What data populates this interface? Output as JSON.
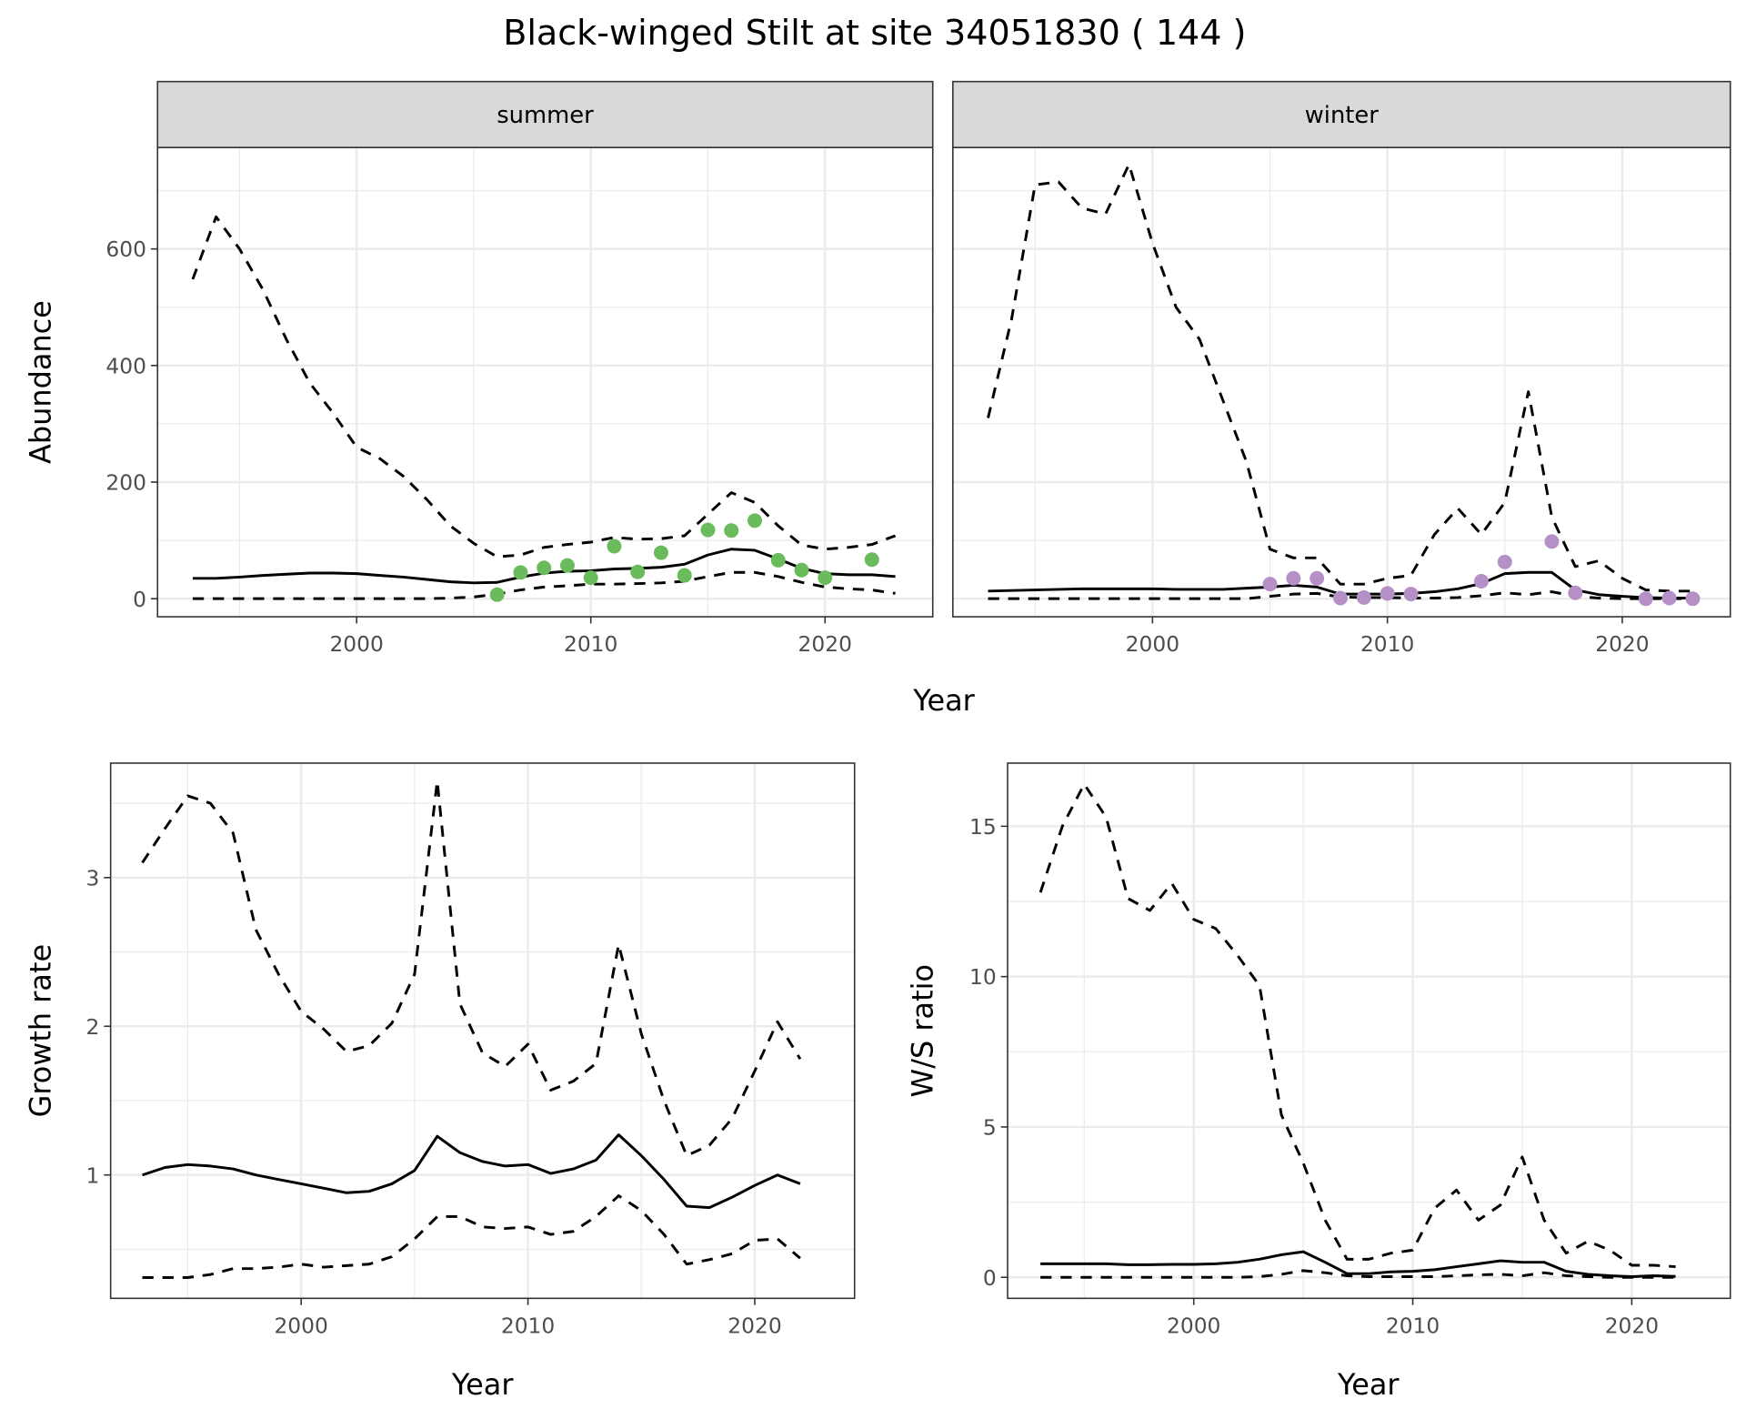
{
  "title": "Black-winged Stilt at site 34051830 ( 144 )",
  "colors": {
    "summer_points": "#6abb5c",
    "winter_points": "#b590c7",
    "line": "#000000",
    "strip_fill": "#d9d9d9",
    "grid": "#ebebeb"
  },
  "shared_x_label": "Year",
  "chart_data": [
    {
      "type": "line",
      "facet": "summer",
      "ylabel": "Abundance",
      "xlim": [
        1991.5,
        2024.6
      ],
      "ylim": [
        -31,
        774
      ],
      "xticks": [
        2000,
        2010,
        2020
      ],
      "yticks": [
        0,
        200,
        400,
        600
      ],
      "grid": true,
      "x": [
        1993,
        1994,
        1995,
        1996,
        1997,
        1998,
        1999,
        2000,
        2001,
        2002,
        2003,
        2004,
        2005,
        2006,
        2007,
        2008,
        2009,
        2010,
        2011,
        2012,
        2013,
        2014,
        2015,
        2016,
        2017,
        2018,
        2019,
        2020,
        2021,
        2022,
        2023
      ],
      "series": [
        {
          "style": "dashed",
          "values": [
            548,
            655,
            600,
            530,
            445,
            370,
            318,
            260,
            240,
            210,
            170,
            125,
            95,
            72,
            75,
            88,
            93,
            97,
            105,
            102,
            103,
            108,
            145,
            182,
            165,
            125,
            92,
            85,
            88,
            93,
            108
          ]
        },
        {
          "style": "solid",
          "values": [
            35,
            35,
            37,
            40,
            42,
            44,
            44,
            43,
            40,
            37,
            33,
            29,
            27,
            28,
            37,
            44,
            47,
            48,
            51,
            52,
            54,
            59,
            75,
            85,
            83,
            68,
            52,
            43,
            41,
            41,
            38
          ]
        },
        {
          "style": "dashed",
          "values": [
            0,
            0,
            0,
            0,
            0,
            0,
            0,
            0,
            0,
            0,
            0,
            1,
            3,
            8,
            15,
            20,
            22,
            25,
            25,
            26,
            27,
            30,
            38,
            45,
            45,
            38,
            28,
            20,
            17,
            15,
            9
          ]
        }
      ],
      "points": {
        "x": [
          2006,
          2007,
          2008,
          2009,
          2010,
          2011,
          2012,
          2013,
          2014,
          2015,
          2016,
          2017,
          2018,
          2019,
          2020,
          2022
        ],
        "y": [
          7,
          45,
          53,
          57,
          36,
          90,
          46,
          79,
          40,
          118,
          117,
          134,
          66,
          49,
          36,
          67
        ]
      }
    },
    {
      "type": "line",
      "facet": "winter",
      "ylabel": "",
      "xlim": [
        1991.5,
        2024.6
      ],
      "ylim": [
        -31,
        774
      ],
      "xticks": [
        2000,
        2010,
        2020
      ],
      "yticks": [
        0,
        200,
        400,
        600
      ],
      "grid": true,
      "x": [
        1993,
        1994,
        1995,
        1996,
        1997,
        1998,
        1999,
        2000,
        2001,
        2002,
        2003,
        2004,
        2005,
        2006,
        2007,
        2008,
        2009,
        2010,
        2011,
        2012,
        2013,
        2014,
        2015,
        2016,
        2017,
        2018,
        2019,
        2020,
        2021,
        2022,
        2023
      ],
      "series": [
        {
          "style": "dashed",
          "values": [
            310,
            480,
            710,
            715,
            670,
            660,
            745,
            610,
            500,
            445,
            340,
            235,
            85,
            70,
            70,
            25,
            25,
            35,
            40,
            110,
            155,
            110,
            165,
            355,
            140,
            55,
            65,
            35,
            15,
            13,
            13
          ]
        },
        {
          "style": "solid",
          "values": [
            13,
            14,
            15,
            16,
            17,
            17,
            17,
            17,
            16,
            16,
            16,
            18,
            20,
            23,
            20,
            8,
            8,
            8,
            9,
            12,
            17,
            26,
            43,
            45,
            45,
            15,
            7,
            4,
            2,
            1,
            1
          ]
        },
        {
          "style": "dashed",
          "values": [
            0,
            0,
            0,
            0,
            0,
            0,
            0,
            0,
            0,
            0,
            0,
            0,
            4,
            8,
            9,
            3,
            2,
            2,
            1,
            1,
            2,
            5,
            10,
            7,
            12,
            4,
            1,
            0,
            0,
            0,
            0
          ]
        }
      ],
      "points": {
        "x": [
          2005,
          2006,
          2007,
          2008,
          2009,
          2010,
          2011,
          2014,
          2015,
          2017,
          2018,
          2021,
          2022,
          2023
        ],
        "y": [
          25,
          35,
          35,
          1,
          2,
          9,
          8,
          30,
          63,
          98,
          10,
          0,
          1,
          0
        ]
      }
    },
    {
      "type": "line",
      "xlabel": "Year",
      "ylabel": "Growth rate",
      "xlim": [
        1991.6,
        2024.4
      ],
      "ylim": [
        0.17,
        3.77
      ],
      "xticks": [
        2000,
        2010,
        2020
      ],
      "yticks": [
        1,
        2,
        3
      ],
      "grid": true,
      "x": [
        1993,
        1994,
        1995,
        1996,
        1997,
        1998,
        1999,
        2000,
        2001,
        2002,
        2003,
        2004,
        2005,
        2006,
        2007,
        2008,
        2009,
        2010,
        2011,
        2012,
        2013,
        2014,
        2015,
        2016,
        2017,
        2018,
        2019,
        2020,
        2021,
        2022
      ],
      "series": [
        {
          "style": "dashed",
          "values": [
            3.1,
            3.33,
            3.55,
            3.5,
            3.3,
            2.65,
            2.35,
            2.1,
            1.98,
            1.83,
            1.87,
            2.02,
            2.35,
            3.65,
            2.15,
            1.82,
            1.73,
            1.88,
            1.57,
            1.63,
            1.75,
            2.55,
            1.95,
            1.5,
            1.13,
            1.2,
            1.38,
            1.7,
            2.03,
            1.78
          ]
        },
        {
          "style": "solid",
          "values": [
            1.0,
            1.05,
            1.07,
            1.06,
            1.04,
            1.0,
            0.97,
            0.94,
            0.91,
            0.88,
            0.89,
            0.94,
            1.03,
            1.26,
            1.15,
            1.09,
            1.06,
            1.07,
            1.01,
            1.04,
            1.1,
            1.27,
            1.13,
            0.97,
            0.79,
            0.78,
            0.85,
            0.93,
            1.0,
            0.94
          ]
        },
        {
          "style": "dashed",
          "values": [
            0.31,
            0.31,
            0.31,
            0.33,
            0.37,
            0.37,
            0.38,
            0.4,
            0.38,
            0.39,
            0.4,
            0.45,
            0.57,
            0.72,
            0.72,
            0.65,
            0.64,
            0.65,
            0.6,
            0.62,
            0.72,
            0.86,
            0.76,
            0.6,
            0.4,
            0.43,
            0.47,
            0.56,
            0.57,
            0.44
          ]
        }
      ]
    },
    {
      "type": "line",
      "xlabel": "Year",
      "ylabel": "W/S ratio",
      "xlim": [
        1991.5,
        2024.5
      ],
      "ylim": [
        -0.7,
        17.1
      ],
      "xticks": [
        2000,
        2010,
        2020
      ],
      "yticks": [
        0,
        5,
        10,
        15
      ],
      "grid": true,
      "x": [
        1993,
        1994,
        1995,
        1996,
        1997,
        1998,
        1999,
        2000,
        2001,
        2002,
        2003,
        2004,
        2005,
        2006,
        2007,
        2008,
        2009,
        2010,
        2011,
        2012,
        2013,
        2014,
        2015,
        2016,
        2017,
        2018,
        2019,
        2020,
        2021,
        2022
      ],
      "series": [
        {
          "style": "dashed",
          "values": [
            12.8,
            15,
            16.4,
            15.3,
            12.6,
            12.2,
            13.1,
            11.9,
            11.6,
            10.7,
            9.7,
            5.4,
            3.8,
            1.9,
            0.6,
            0.6,
            0.8,
            0.9,
            2.3,
            2.9,
            1.9,
            2.4,
            4.0,
            1.9,
            0.8,
            1.2,
            0.9,
            0.4,
            0.4,
            0.35
          ]
        },
        {
          "style": "solid",
          "values": [
            0.45,
            0.45,
            0.45,
            0.45,
            0.42,
            0.42,
            0.43,
            0.43,
            0.45,
            0.5,
            0.6,
            0.75,
            0.85,
            0.5,
            0.12,
            0.12,
            0.18,
            0.2,
            0.25,
            0.35,
            0.45,
            0.55,
            0.5,
            0.5,
            0.2,
            0.1,
            0.05,
            0.02,
            0.05,
            0.03
          ]
        },
        {
          "style": "dashed",
          "values": [
            0,
            0,
            0,
            0,
            0,
            0,
            0,
            0,
            0,
            0,
            0.02,
            0.1,
            0.22,
            0.15,
            0.05,
            0.02,
            0.02,
            0.02,
            0.02,
            0.05,
            0.08,
            0.1,
            0.05,
            0.15,
            0.05,
            0.02,
            0,
            0,
            0,
            0
          ]
        }
      ]
    }
  ]
}
